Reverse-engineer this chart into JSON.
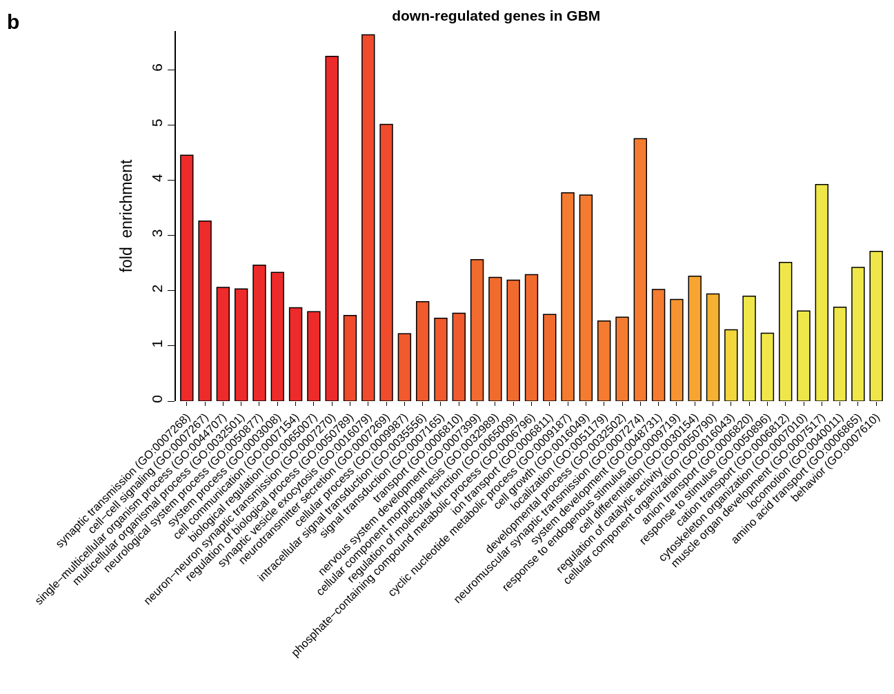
{
  "chart_data": {
    "type": "bar",
    "title": "down-regulated genes in GBM",
    "ylabel": "fold  enrichment",
    "annotations": [
      "b"
    ],
    "categories": [
      "synaptic transmission (GO:0007268)",
      "cell−cell signaling (GO:0007267)",
      "single−multicellular organism process (GO:0044707)",
      "multicellular organismal process (GO:0032501)",
      "neurological system process (GO:0050877)",
      "system process (GO:0003008)",
      "cell communication (GO:0007154)",
      "biological regulation (GO:0065007)",
      "neuron−neuron synaptic transmission (GO:0007270)",
      "regulation of biological process (GO:0050789)",
      "synaptic vesicle exocytosis (GO:0016079)",
      "neurotransmitter secretion (GO:0007269)",
      "cellular process (GO:0009987)",
      "intracellular signal transduction (GO:0035556)",
      "signal transduction (GO:0007165)",
      "transport (GO:0006810)",
      "nervous system development (GO:0007399)",
      "cellular component morphogenesis (GO:0032989)",
      "regulation of molecular function (GO:0065009)",
      "phosphate−containing compound metabolic process (GO:0006796)",
      "ion transport (GO:0006811)",
      "cyclic nucleotide metabolic process (GO:0009187)",
      "cell growth (GO:0016049)",
      "localization (GO:0051179)",
      "developmental process (GO:0032502)",
      "neuromuscular synaptic transmission (GO:0007274)",
      "system development (GO:0048731)",
      "response to endogenous stimulus (GO:0009719)",
      "cell differentiation (GO:0030154)",
      "regulation of catalytic activity (GO:0050790)",
      "cellular component organization (GO:0016043)",
      "anion transport (GO:0006820)",
      "response to stimulus (GO:0050896)",
      "cation transport (GO:0006812)",
      "cytoskeleton organization (GO:0007010)",
      "muscle organ development (GO:0007517)",
      "locomotion (GO:0040011)",
      "amino acid transport (GO:0006865)",
      "behavior (GO:0007610)"
    ],
    "values": [
      4.45,
      3.26,
      2.06,
      2.03,
      2.46,
      2.33,
      1.69,
      1.62,
      6.24,
      1.55,
      6.63,
      5.01,
      1.22,
      1.8,
      1.5,
      1.59,
      2.56,
      2.24,
      2.19,
      2.29,
      1.57,
      3.77,
      3.73,
      1.45,
      1.52,
      4.75,
      2.02,
      1.84,
      2.26,
      1.94,
      1.29,
      1.9,
      1.23,
      2.51,
      1.63,
      3.92,
      1.7,
      2.42,
      2.71
    ],
    "colors": [
      "#ed2b2a",
      "#ed2b2a",
      "#ed2b2a",
      "#ed2b2a",
      "#ed2b2a",
      "#ed2b2a",
      "#ed2b2a",
      "#ed2b2a",
      "#ed2b2a",
      "#ef4b2c",
      "#ef4b2c",
      "#ef4b2c",
      "#f05a2d",
      "#f05a2d",
      "#f05a2d",
      "#f05a2d",
      "#f26b2e",
      "#f26b2e",
      "#f26b2e",
      "#f26b2e",
      "#f26b2e",
      "#f47b30",
      "#f47b30",
      "#f47b30",
      "#f47b30",
      "#f47b30",
      "#f47b30",
      "#f79431",
      "#f7a431",
      "#f5b132",
      "#f2d63c",
      "#efe74a",
      "#efe74a",
      "#efe74a",
      "#efe74a",
      "#efe74a",
      "#efe74a",
      "#efe74a",
      "#efe74a"
    ],
    "ylim": [
      0,
      6.7
    ],
    "yticks": [
      0,
      1,
      2,
      3,
      4,
      5,
      6
    ]
  }
}
